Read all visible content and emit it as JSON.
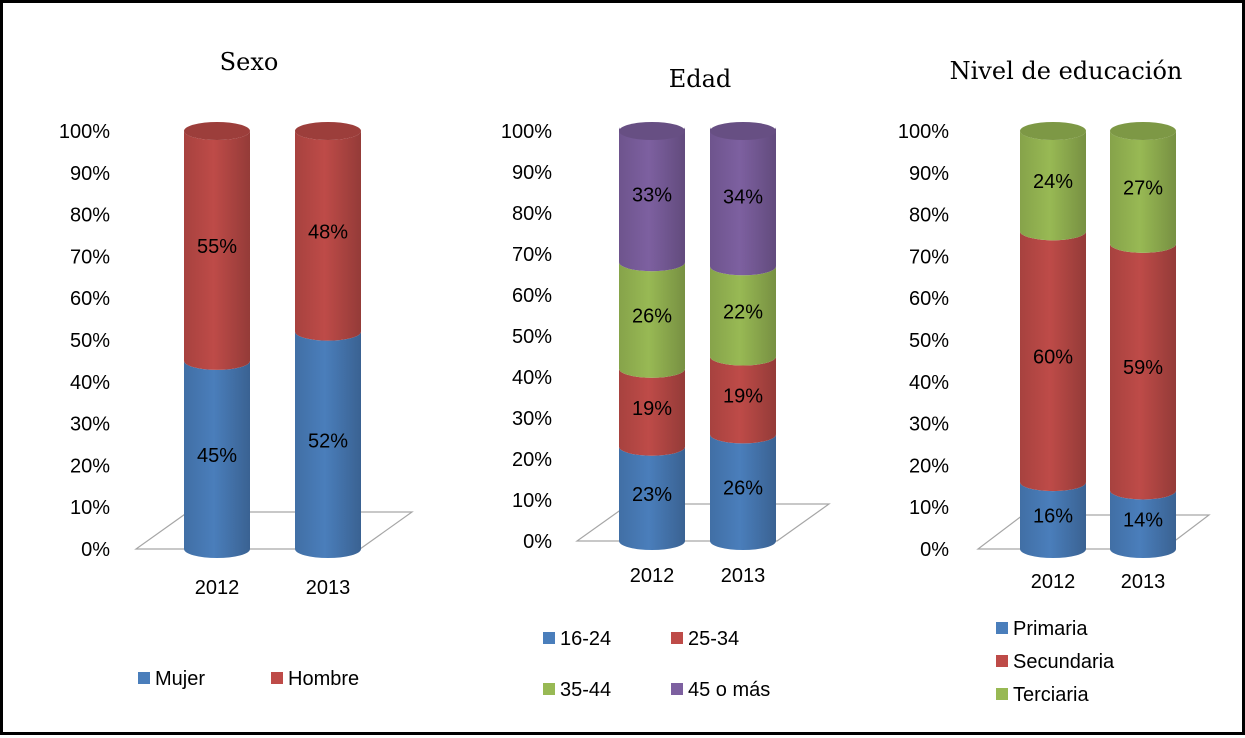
{
  "chart_data": [
    {
      "type": "bar",
      "stacked": "percent",
      "title": "Sexo",
      "categories": [
        "2012",
        "2013"
      ],
      "yticks": [
        "0%",
        "10%",
        "20%",
        "30%",
        "40%",
        "50%",
        "60%",
        "70%",
        "80%",
        "90%",
        "100%"
      ],
      "ylim": [
        0,
        100
      ],
      "series": [
        {
          "name": "Mujer",
          "values": [
            45,
            52
          ],
          "labels": [
            "45%",
            "52%"
          ],
          "color": "#4A7EBB"
        },
        {
          "name": "Hombre",
          "values": [
            55,
            48
          ],
          "labels": [
            "55%",
            "48%"
          ],
          "color": "#BE4B48"
        }
      ],
      "legend_position": "bottom"
    },
    {
      "type": "bar",
      "stacked": "percent",
      "title": "Edad",
      "categories": [
        "2012",
        "2013"
      ],
      "yticks": [
        "0%",
        "10%",
        "20%",
        "30%",
        "40%",
        "50%",
        "60%",
        "70%",
        "80%",
        "90%",
        "100%"
      ],
      "ylim": [
        0,
        100
      ],
      "series": [
        {
          "name": "16-24",
          "values": [
            23,
            26
          ],
          "labels": [
            "23%",
            "26%"
          ],
          "color": "#4A7EBB"
        },
        {
          "name": "25-34",
          "values": [
            19,
            19
          ],
          "labels": [
            "19%",
            "19%"
          ],
          "color": "#BE4B48"
        },
        {
          "name": "35-44",
          "values": [
            26,
            22
          ],
          "labels": [
            "26%",
            "22%"
          ],
          "color": "#98B954"
        },
        {
          "name": "45 o más",
          "values": [
            33,
            34
          ],
          "labels": [
            "33%",
            "34%"
          ],
          "color": "#7D60A0"
        }
      ],
      "legend_position": "bottom"
    },
    {
      "type": "bar",
      "stacked": "percent",
      "title": "Nivel de educación",
      "categories": [
        "2012",
        "2013"
      ],
      "yticks": [
        "0%",
        "10%",
        "20%",
        "30%",
        "40%",
        "50%",
        "60%",
        "70%",
        "80%",
        "90%",
        "100%"
      ],
      "ylim": [
        0,
        100
      ],
      "series": [
        {
          "name": "Primaria",
          "values": [
            16,
            14
          ],
          "labels": [
            "16%",
            "14%"
          ],
          "color": "#4A7EBB"
        },
        {
          "name": "Secundaria",
          "values": [
            60,
            59
          ],
          "labels": [
            "60%",
            "59%"
          ],
          "color": "#BE4B48"
        },
        {
          "name": "Terciaria",
          "values": [
            24,
            27
          ],
          "labels": [
            "24%",
            "27%"
          ],
          "color": "#98B954"
        }
      ],
      "legend_position": "bottom"
    }
  ]
}
